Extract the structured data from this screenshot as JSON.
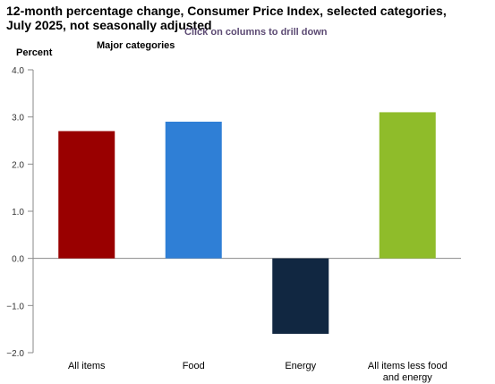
{
  "header": {
    "title": "12-month percentage change, Consumer Price Index, selected categories, July 2025, not seasonally adjusted",
    "drill_hint": "Click on columns to drill down",
    "ylabel": "Percent",
    "subtitle": "Major categories"
  },
  "chart_data": {
    "type": "bar",
    "title": "12-month percentage change, Consumer Price Index, selected categories, July 2025, not seasonally adjusted",
    "subtitle": "Major categories",
    "ylabel": "Percent",
    "xlabel": "",
    "ylim": [
      -2.0,
      4.0
    ],
    "yticks": [
      4.0,
      3.0,
      2.0,
      1.0,
      0.0,
      -1.0,
      -2.0
    ],
    "ytick_labels": [
      "4.0",
      "3.0",
      "2.0",
      "1.0",
      "0.0",
      "−1.0",
      "−2.0"
    ],
    "categories": [
      "All items",
      "Food",
      "Energy",
      "All items less food and energy"
    ],
    "values": [
      2.7,
      2.9,
      -1.6,
      3.1
    ],
    "colors": [
      "#990000",
      "#2f7fd6",
      "#112741",
      "#8fbc2a"
    ],
    "grid": false,
    "legend": "none"
  }
}
